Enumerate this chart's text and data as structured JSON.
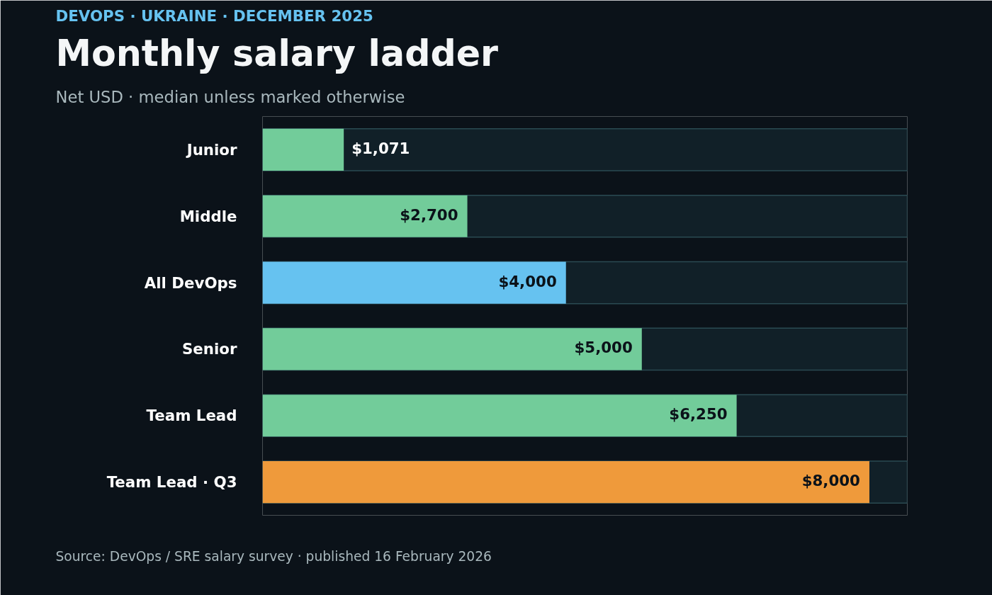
{
  "chart_data": {
    "type": "bar",
    "orientation": "horizontal",
    "title": "Monthly salary ladder",
    "subtitle": "Net USD · median unless marked otherwise",
    "annotations": [
      "DEVOPS · UKRAINE · DECEMBER 2025",
      "Source: DevOps / SRE salary survey · published 16 February 2026"
    ],
    "categories": [
      "Junior",
      "Middle",
      "All DevOps",
      "Senior",
      "Team Lead",
      "Team Lead · Q3"
    ],
    "values": [
      1071,
      2700,
      4000,
      5000,
      6250,
      8000
    ],
    "value_labels": [
      "$1,071",
      "$2,700",
      "$4,000",
      "$5,000",
      "$6,250",
      "$8,000"
    ],
    "colors": [
      "#72cc9a",
      "#72cc9a",
      "#66c2f0",
      "#72cc9a",
      "#72cc9a",
      "#ef9a3b"
    ],
    "xlim": [
      0,
      8500
    ],
    "tick_labels": "y",
    "grid": false
  }
}
